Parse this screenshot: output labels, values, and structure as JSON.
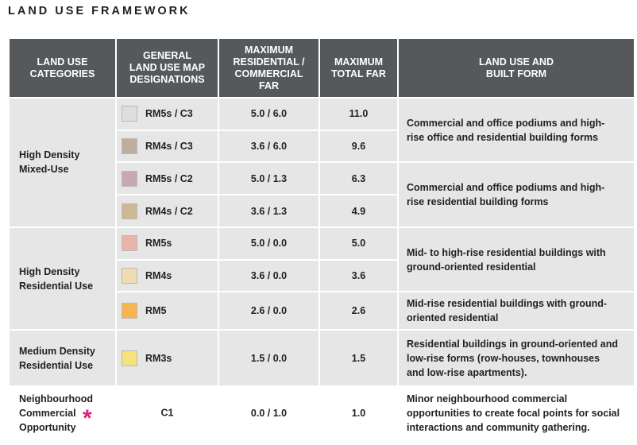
{
  "title": "LAND USE FRAMEWORK",
  "header": {
    "categories": [
      "LAND USE",
      "CATEGORIES"
    ],
    "designations": [
      "GENERAL",
      "LAND USE MAP",
      "DESIGNATIONS"
    ],
    "max_res": [
      "MAXIMUM",
      "RESIDENTIAL /",
      "COMMERCIAL",
      "FAR"
    ],
    "max_total": [
      "MAXIMUM",
      "TOTAL FAR"
    ],
    "built_form": [
      "LAND USE AND",
      "BUILT FORM"
    ]
  },
  "groups": [
    {
      "category": [
        "High Density",
        "Mixed-Use"
      ],
      "rows": [
        {
          "designation": "RM5s / C3",
          "swatch": "#dedede",
          "res_com": "5.0 / 6.0",
          "total": "11.0"
        },
        {
          "designation": "RM4s / C3",
          "swatch": "#bfae9d",
          "res_com": "3.6 / 6.0",
          "total": "9.6"
        },
        {
          "designation": "RM5s / C2",
          "swatch": "#c9a8b4",
          "res_com": "5.0 / 1.3",
          "total": "6.3"
        },
        {
          "designation": "RM4s / C2",
          "swatch": "#cbb994",
          "res_com": "3.6 / 1.3",
          "total": "4.9"
        }
      ],
      "descriptions": [
        [
          "Commercial and office podiums and high-",
          "rise office and residential building forms"
        ],
        [
          "Commercial and office podiums and high-",
          "rise residential building forms"
        ]
      ]
    },
    {
      "category": [
        "High Density",
        "Residential Use"
      ],
      "rows": [
        {
          "designation": "RM5s",
          "swatch": "#e8b5a8",
          "res_com": "5.0 / 0.0",
          "total": "5.0"
        },
        {
          "designation": "RM4s",
          "swatch": "#f0dcb0",
          "res_com": "3.6 / 0.0",
          "total": "3.6"
        },
        {
          "designation": "RM5",
          "swatch": "#f7b54f",
          "res_com": "2.6 / 0.0",
          "total": "2.6"
        }
      ],
      "descriptions": [
        [
          "Mid- to high-rise residential buildings with",
          "ground-oriented residential"
        ],
        [
          "Mid-rise residential buildings with ground-",
          "oriented residential"
        ]
      ]
    },
    {
      "category": [
        "Medium Density",
        "Residential Use"
      ],
      "rows": [
        {
          "designation": "RM3s",
          "swatch": "#f6e27a",
          "res_com": "1.5 / 0.0",
          "total": "1.5"
        }
      ],
      "descriptions": [
        [
          "Residential buildings in ground-oriented and",
          "low-rise forms (row-houses, townhouses",
          "and low-rise apartments)."
        ]
      ]
    },
    {
      "category": [
        "Neighbourhood",
        "Commercial",
        "Opportunity"
      ],
      "rows": [
        {
          "designation": "C1",
          "res_com": "0.0 / 1.0",
          "total": "1.0"
        }
      ],
      "descriptions": [
        [
          "Minor neighbourhood commercial",
          "opportunities to create focal points for social",
          "interactions and community gathering."
        ]
      ],
      "marker": "*"
    }
  ]
}
